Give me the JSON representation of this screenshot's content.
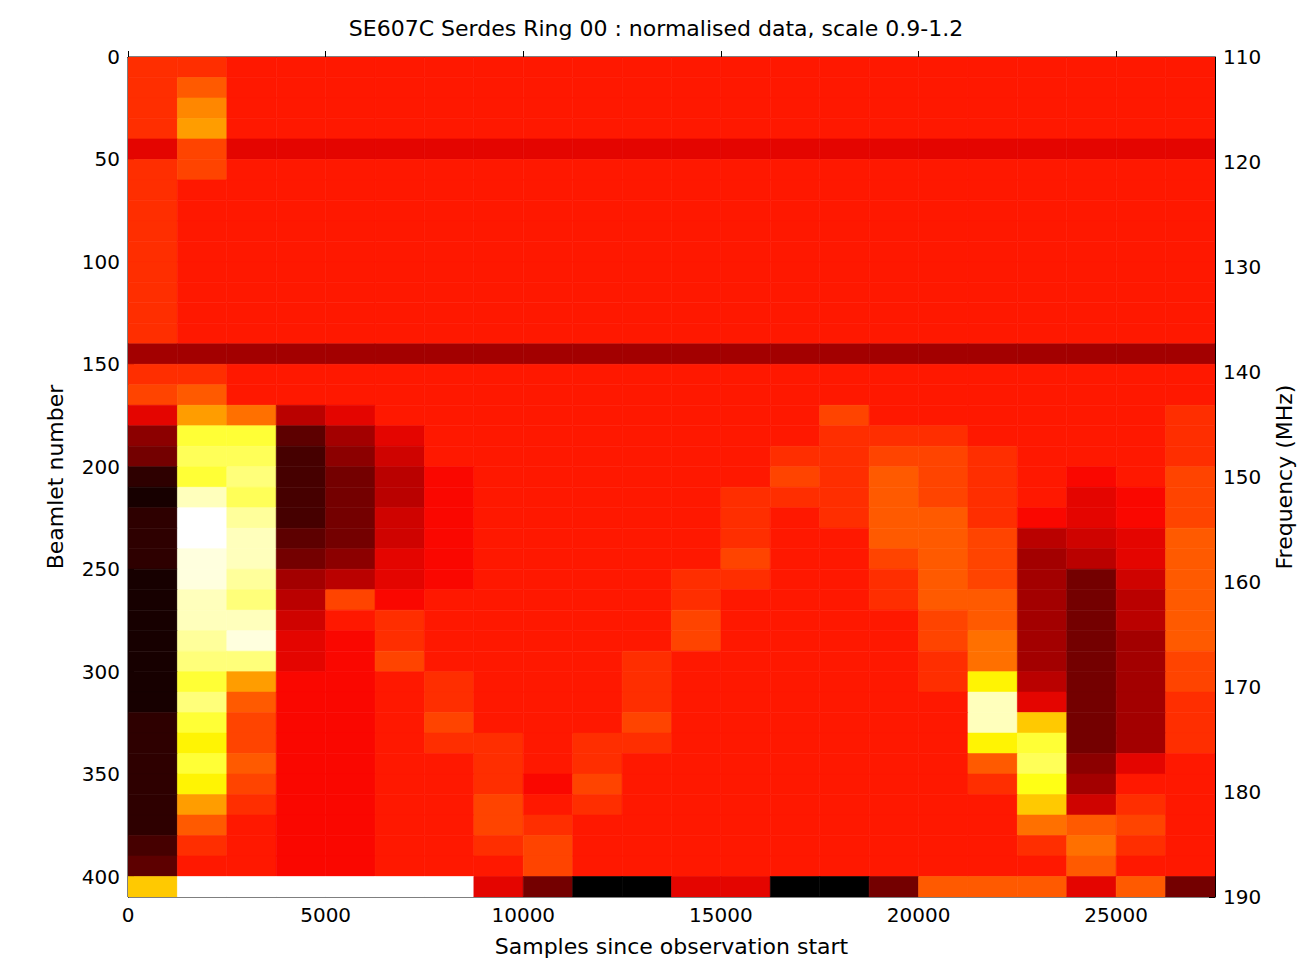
{
  "chart_data": {
    "type": "heatmap",
    "title": "SE607C Serdes Ring 00 : normalised data, scale 0.9-1.2",
    "xlabel": "Samples since observation start",
    "ylabel": "Beamlet number",
    "y2label": "Frequency (MHz)",
    "xlim": [
      0,
      27500
    ],
    "ylim": [
      410,
      0
    ],
    "y2lim": [
      190,
      110
    ],
    "xticks": [
      0,
      5000,
      10000,
      15000,
      20000,
      25000
    ],
    "yticks": [
      0,
      50,
      100,
      150,
      200,
      250,
      300,
      350,
      400
    ],
    "y2ticks": [
      110,
      120,
      130,
      140,
      150,
      160,
      170,
      180,
      190
    ],
    "zlim": [
      0.9,
      1.2
    ],
    "x_bins": [
      0,
      1250,
      2500,
      3750,
      5000,
      6250,
      7500,
      8750,
      10000,
      11250,
      12500,
      13750,
      15000,
      16250,
      17500,
      18750,
      20000,
      21250,
      22500,
      23750,
      25000,
      26250,
      27500
    ],
    "y_bins": [
      0,
      10,
      20,
      30,
      40,
      50,
      60,
      70,
      80,
      90,
      100,
      110,
      120,
      130,
      140,
      150,
      160,
      170,
      180,
      190,
      200,
      210,
      220,
      230,
      240,
      250,
      260,
      270,
      280,
      290,
      300,
      310,
      320,
      330,
      340,
      350,
      360,
      370,
      380,
      390,
      400,
      410
    ],
    "values": [
      [
        1.03,
        1.03,
        1.02,
        1.02,
        1.02,
        1.02,
        1.02,
        1.02,
        1.02,
        1.02,
        1.02,
        1.02,
        1.02,
        1.02,
        1.02,
        1.02,
        1.02,
        1.02,
        1.02,
        1.02,
        1.02,
        1.02
      ],
      [
        1.03,
        1.05,
        1.02,
        1.02,
        1.02,
        1.02,
        1.02,
        1.02,
        1.02,
        1.02,
        1.02,
        1.02,
        1.02,
        1.02,
        1.02,
        1.02,
        1.02,
        1.02,
        1.02,
        1.02,
        1.02,
        1.02
      ],
      [
        1.03,
        1.07,
        1.02,
        1.02,
        1.02,
        1.02,
        1.02,
        1.02,
        1.02,
        1.02,
        1.02,
        1.02,
        1.02,
        1.02,
        1.02,
        1.02,
        1.02,
        1.02,
        1.02,
        1.02,
        1.02,
        1.02
      ],
      [
        1.03,
        1.08,
        1.02,
        1.02,
        1.02,
        1.02,
        1.02,
        1.02,
        1.02,
        1.02,
        1.02,
        1.02,
        1.02,
        1.02,
        1.02,
        1.02,
        1.02,
        1.02,
        1.02,
        1.02,
        1.02,
        1.02
      ],
      [
        1.0,
        1.04,
        1.0,
        1.0,
        1.0,
        1.0,
        1.0,
        1.0,
        1.0,
        1.0,
        1.0,
        1.0,
        1.0,
        1.0,
        1.0,
        1.0,
        1.0,
        1.0,
        1.0,
        1.0,
        1.0,
        1.0
      ],
      [
        1.03,
        1.04,
        1.02,
        1.02,
        1.02,
        1.02,
        1.02,
        1.02,
        1.02,
        1.02,
        1.02,
        1.02,
        1.02,
        1.02,
        1.02,
        1.02,
        1.02,
        1.02,
        1.02,
        1.02,
        1.02,
        1.02
      ],
      [
        1.03,
        1.02,
        1.02,
        1.02,
        1.02,
        1.02,
        1.02,
        1.02,
        1.02,
        1.02,
        1.02,
        1.02,
        1.02,
        1.02,
        1.02,
        1.02,
        1.02,
        1.02,
        1.02,
        1.02,
        1.02,
        1.02
      ],
      [
        1.03,
        1.02,
        1.02,
        1.02,
        1.02,
        1.02,
        1.02,
        1.02,
        1.02,
        1.02,
        1.02,
        1.02,
        1.02,
        1.02,
        1.02,
        1.02,
        1.02,
        1.02,
        1.02,
        1.02,
        1.02,
        1.02
      ],
      [
        1.03,
        1.02,
        1.02,
        1.02,
        1.02,
        1.02,
        1.02,
        1.02,
        1.02,
        1.02,
        1.02,
        1.02,
        1.02,
        1.02,
        1.02,
        1.02,
        1.02,
        1.02,
        1.02,
        1.02,
        1.02,
        1.02
      ],
      [
        1.03,
        1.02,
        1.02,
        1.02,
        1.02,
        1.02,
        1.02,
        1.02,
        1.02,
        1.02,
        1.02,
        1.02,
        1.02,
        1.02,
        1.02,
        1.02,
        1.02,
        1.02,
        1.02,
        1.02,
        1.02,
        1.02
      ],
      [
        1.03,
        1.02,
        1.02,
        1.02,
        1.02,
        1.02,
        1.02,
        1.02,
        1.02,
        1.02,
        1.02,
        1.02,
        1.02,
        1.02,
        1.02,
        1.02,
        1.02,
        1.02,
        1.02,
        1.02,
        1.02,
        1.02
      ],
      [
        1.03,
        1.02,
        1.02,
        1.02,
        1.02,
        1.02,
        1.02,
        1.02,
        1.02,
        1.02,
        1.02,
        1.02,
        1.02,
        1.02,
        1.02,
        1.02,
        1.02,
        1.02,
        1.02,
        1.02,
        1.02,
        1.02
      ],
      [
        1.03,
        1.02,
        1.02,
        1.02,
        1.02,
        1.02,
        1.02,
        1.02,
        1.02,
        1.02,
        1.02,
        1.02,
        1.02,
        1.02,
        1.02,
        1.02,
        1.02,
        1.02,
        1.02,
        1.02,
        1.02,
        1.02
      ],
      [
        1.03,
        1.02,
        1.02,
        1.02,
        1.02,
        1.02,
        1.02,
        1.02,
        1.02,
        1.02,
        1.02,
        1.02,
        1.02,
        1.02,
        1.02,
        1.02,
        1.02,
        1.02,
        1.02,
        1.02,
        1.02,
        1.02
      ],
      [
        0.97,
        0.97,
        0.97,
        0.97,
        0.97,
        0.97,
        0.97,
        0.97,
        0.97,
        0.97,
        0.97,
        0.97,
        0.97,
        0.97,
        0.97,
        0.97,
        0.97,
        0.97,
        0.97,
        0.97,
        0.97,
        0.97
      ],
      [
        1.03,
        1.03,
        1.02,
        1.02,
        1.02,
        1.02,
        1.02,
        1.02,
        1.02,
        1.02,
        1.02,
        1.02,
        1.02,
        1.02,
        1.02,
        1.02,
        1.02,
        1.02,
        1.02,
        1.02,
        1.02,
        1.02
      ],
      [
        1.04,
        1.05,
        1.02,
        1.02,
        1.02,
        1.02,
        1.02,
        1.02,
        1.02,
        1.02,
        1.02,
        1.02,
        1.02,
        1.02,
        1.02,
        1.02,
        1.02,
        1.02,
        1.02,
        1.02,
        1.02,
        1.02
      ],
      [
        1.0,
        1.08,
        1.06,
        0.98,
        1.0,
        1.02,
        1.02,
        1.02,
        1.02,
        1.02,
        1.02,
        1.02,
        1.02,
        1.02,
        1.04,
        1.02,
        1.02,
        1.02,
        1.02,
        1.02,
        1.02,
        1.03
      ],
      [
        0.96,
        1.14,
        1.14,
        0.94,
        0.97,
        1.0,
        1.02,
        1.02,
        1.02,
        1.02,
        1.02,
        1.02,
        1.02,
        1.02,
        1.03,
        1.03,
        1.03,
        1.02,
        1.02,
        1.02,
        1.02,
        1.03
      ],
      [
        0.95,
        1.15,
        1.15,
        0.93,
        0.96,
        0.99,
        1.02,
        1.02,
        1.02,
        1.02,
        1.02,
        1.02,
        1.02,
        1.03,
        1.03,
        1.04,
        1.04,
        1.03,
        1.02,
        1.02,
        1.02,
        1.03
      ],
      [
        0.92,
        1.14,
        1.16,
        0.93,
        0.95,
        0.98,
        1.01,
        1.02,
        1.02,
        1.02,
        1.02,
        1.02,
        1.02,
        1.04,
        1.03,
        1.05,
        1.04,
        1.03,
        1.02,
        1.01,
        1.02,
        1.04
      ],
      [
        0.91,
        1.18,
        1.15,
        0.93,
        0.95,
        0.98,
        1.01,
        1.02,
        1.02,
        1.02,
        1.02,
        1.02,
        1.03,
        1.03,
        1.03,
        1.05,
        1.04,
        1.03,
        1.02,
        1.0,
        1.01,
        1.04
      ],
      [
        0.92,
        1.2,
        1.17,
        0.93,
        0.95,
        0.99,
        1.01,
        1.02,
        1.02,
        1.02,
        1.02,
        1.02,
        1.03,
        1.02,
        1.03,
        1.05,
        1.05,
        1.03,
        1.01,
        1.0,
        1.01,
        1.04
      ],
      [
        0.92,
        1.2,
        1.18,
        0.94,
        0.95,
        0.99,
        1.01,
        1.02,
        1.02,
        1.02,
        1.02,
        1.02,
        1.03,
        1.02,
        1.02,
        1.05,
        1.05,
        1.04,
        0.98,
        0.99,
        1.0,
        1.05
      ],
      [
        0.92,
        1.19,
        1.18,
        0.95,
        0.96,
        1.0,
        1.01,
        1.02,
        1.02,
        1.02,
        1.02,
        1.02,
        1.04,
        1.02,
        1.02,
        1.04,
        1.05,
        1.04,
        0.97,
        0.98,
        1.0,
        1.05
      ],
      [
        0.91,
        1.19,
        1.17,
        0.97,
        0.98,
        1.0,
        1.01,
        1.02,
        1.02,
        1.02,
        1.02,
        1.03,
        1.03,
        1.02,
        1.02,
        1.03,
        1.05,
        1.04,
        0.97,
        0.95,
        0.99,
        1.05
      ],
      [
        0.91,
        1.18,
        1.16,
        0.98,
        1.04,
        1.01,
        1.02,
        1.02,
        1.02,
        1.02,
        1.02,
        1.03,
        1.02,
        1.02,
        1.02,
        1.03,
        1.05,
        1.05,
        0.97,
        0.95,
        0.98,
        1.05
      ],
      [
        0.91,
        1.18,
        1.18,
        0.99,
        1.02,
        1.03,
        1.02,
        1.02,
        1.02,
        1.02,
        1.02,
        1.04,
        1.02,
        1.02,
        1.02,
        1.02,
        1.04,
        1.05,
        0.97,
        0.95,
        0.98,
        1.05
      ],
      [
        0.91,
        1.17,
        1.19,
        1.0,
        1.01,
        1.03,
        1.02,
        1.02,
        1.02,
        1.02,
        1.02,
        1.04,
        1.02,
        1.02,
        1.02,
        1.02,
        1.04,
        1.06,
        0.97,
        0.95,
        0.97,
        1.05
      ],
      [
        0.91,
        1.16,
        1.16,
        1.0,
        1.01,
        1.04,
        1.02,
        1.02,
        1.02,
        1.02,
        1.03,
        1.02,
        1.02,
        1.02,
        1.02,
        1.02,
        1.03,
        1.06,
        0.97,
        0.95,
        0.97,
        1.04
      ],
      [
        0.91,
        1.14,
        1.08,
        1.01,
        1.01,
        1.02,
        1.03,
        1.02,
        1.02,
        1.02,
        1.03,
        1.02,
        1.02,
        1.02,
        1.02,
        1.02,
        1.03,
        1.12,
        0.98,
        0.95,
        0.97,
        1.04
      ],
      [
        0.91,
        1.16,
        1.05,
        1.01,
        1.01,
        1.02,
        1.03,
        1.02,
        1.02,
        1.02,
        1.03,
        1.02,
        1.02,
        1.02,
        1.02,
        1.02,
        1.02,
        1.18,
        1.0,
        0.95,
        0.97,
        1.03
      ],
      [
        0.92,
        1.14,
        1.04,
        1.01,
        1.01,
        1.02,
        1.04,
        1.02,
        1.02,
        1.02,
        1.04,
        1.02,
        1.02,
        1.02,
        1.02,
        1.02,
        1.02,
        1.18,
        1.1,
        0.95,
        0.97,
        1.03
      ],
      [
        0.92,
        1.12,
        1.04,
        1.01,
        1.01,
        1.02,
        1.03,
        1.03,
        1.02,
        1.03,
        1.03,
        1.02,
        1.02,
        1.02,
        1.02,
        1.02,
        1.02,
        1.12,
        1.14,
        0.95,
        0.97,
        1.03
      ],
      [
        0.92,
        1.14,
        1.05,
        1.01,
        1.01,
        1.02,
        1.02,
        1.03,
        1.02,
        1.03,
        1.02,
        1.02,
        1.02,
        1.02,
        1.02,
        1.02,
        1.02,
        1.05,
        1.15,
        0.96,
        1.0,
        1.02
      ],
      [
        0.92,
        1.12,
        1.04,
        1.01,
        1.01,
        1.02,
        1.02,
        1.03,
        1.01,
        1.04,
        1.02,
        1.02,
        1.02,
        1.02,
        1.02,
        1.02,
        1.02,
        1.03,
        1.13,
        0.97,
        1.02,
        1.02
      ],
      [
        0.92,
        1.08,
        1.03,
        1.01,
        1.01,
        1.02,
        1.02,
        1.04,
        1.02,
        1.03,
        1.02,
        1.02,
        1.02,
        1.02,
        1.02,
        1.02,
        1.02,
        1.02,
        1.1,
        0.99,
        1.03,
        1.02
      ],
      [
        0.92,
        1.05,
        1.02,
        1.01,
        1.01,
        1.02,
        1.02,
        1.04,
        1.03,
        1.02,
        1.02,
        1.02,
        1.02,
        1.02,
        1.02,
        1.02,
        1.02,
        1.02,
        1.06,
        1.05,
        1.04,
        1.02
      ],
      [
        0.93,
        1.03,
        1.02,
        1.01,
        1.01,
        1.02,
        1.02,
        1.03,
        1.04,
        1.02,
        1.02,
        1.02,
        1.02,
        1.02,
        1.02,
        1.02,
        1.02,
        1.02,
        1.03,
        1.06,
        1.03,
        1.02
      ],
      [
        0.94,
        1.02,
        1.02,
        1.01,
        1.01,
        1.02,
        1.02,
        1.02,
        1.04,
        1.02,
        1.02,
        1.02,
        1.02,
        1.02,
        1.02,
        1.02,
        1.02,
        1.02,
        1.02,
        1.05,
        1.02,
        1.02
      ],
      [
        1.1,
        1.2,
        1.2,
        1.2,
        1.2,
        1.2,
        1.2,
        1.0,
        0.95,
        0.9,
        0.9,
        1.0,
        1.0,
        0.9,
        0.9,
        0.95,
        1.05,
        1.05,
        1.05,
        1.0,
        1.05,
        0.95
      ]
    ]
  }
}
